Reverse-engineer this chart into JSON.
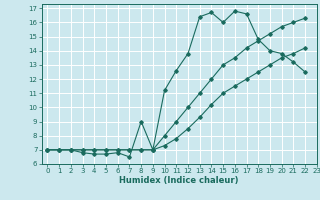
{
  "title": "",
  "xlabel": "Humidex (Indice chaleur)",
  "bg_color": "#cce8ee",
  "grid_color": "#b0d4dc",
  "line_color": "#1a6b5e",
  "xlim": [
    -0.5,
    23
  ],
  "ylim": [
    6,
    17.3
  ],
  "xticks": [
    0,
    1,
    2,
    3,
    4,
    5,
    6,
    7,
    8,
    9,
    10,
    11,
    12,
    13,
    14,
    15,
    16,
    17,
    18,
    19,
    20,
    21,
    22,
    23
  ],
  "yticks": [
    6,
    7,
    8,
    9,
    10,
    11,
    12,
    13,
    14,
    15,
    16,
    17
  ],
  "line1_x": [
    0,
    1,
    2,
    3,
    4,
    5,
    6,
    7,
    8,
    9,
    10,
    11,
    12,
    13,
    14,
    15,
    16,
    17,
    18,
    19,
    20,
    21,
    22
  ],
  "line1_y": [
    7.0,
    7.0,
    7.0,
    6.8,
    6.7,
    6.7,
    6.8,
    6.5,
    9.0,
    7.0,
    11.2,
    12.6,
    13.8,
    16.4,
    16.7,
    16.0,
    16.8,
    16.6,
    14.8,
    14.0,
    13.8,
    13.2,
    12.5
  ],
  "line2_x": [
    0,
    1,
    2,
    3,
    4,
    5,
    6,
    7,
    8,
    9,
    10,
    11,
    12,
    13,
    14,
    15,
    16,
    17,
    18,
    19,
    20,
    21,
    22
  ],
  "line2_y": [
    7.0,
    7.0,
    7.0,
    7.0,
    7.0,
    7.0,
    7.0,
    7.0,
    7.0,
    7.0,
    8.0,
    9.0,
    10.0,
    11.0,
    12.0,
    13.0,
    13.5,
    14.2,
    14.7,
    15.2,
    15.7,
    16.0,
    16.3
  ],
  "line3_x": [
    0,
    1,
    2,
    3,
    4,
    5,
    6,
    7,
    8,
    9,
    10,
    11,
    12,
    13,
    14,
    15,
    16,
    17,
    18,
    19,
    20,
    21,
    22
  ],
  "line3_y": [
    7.0,
    7.0,
    7.0,
    7.0,
    7.0,
    7.0,
    7.0,
    7.0,
    7.0,
    7.0,
    7.3,
    7.8,
    8.5,
    9.3,
    10.2,
    11.0,
    11.5,
    12.0,
    12.5,
    13.0,
    13.5,
    13.8,
    14.2
  ],
  "tick_fontsize": 5,
  "xlabel_fontsize": 6
}
